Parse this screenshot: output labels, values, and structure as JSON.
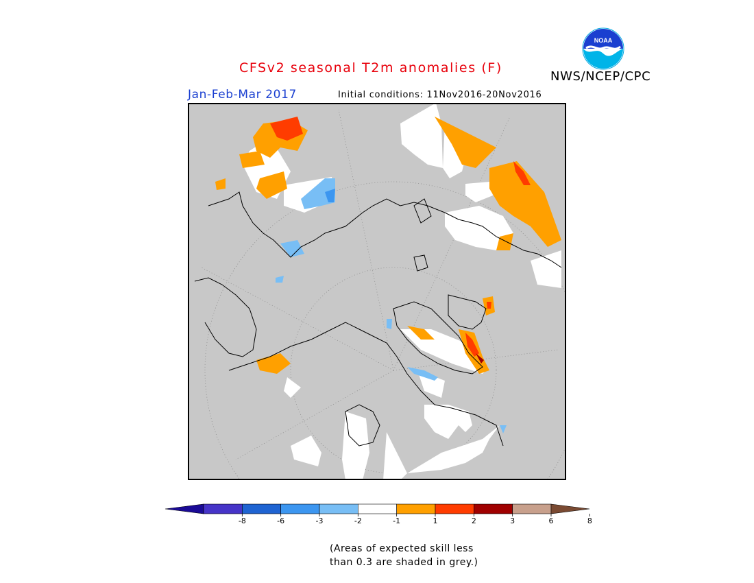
{
  "header": {
    "title": "CFSv2 seasonal T2m anomalies (F)",
    "period": "Jan-Feb-Mar 2017",
    "initial_conditions": "Initial conditions: 11Nov2016-20Nov2016",
    "agency": "NWS/NCEP/CPC",
    "logo_text": "NOAA"
  },
  "map": {
    "projection": "north-polar-stereographic",
    "masked_color": "#c8c8c8",
    "land_outline_color": "#000000"
  },
  "legend": {
    "bins": [
      {
        "color": "#1a0a96"
      },
      {
        "color": "#4634c8"
      },
      {
        "color": "#1f64d2"
      },
      {
        "color": "#3c96f0"
      },
      {
        "color": "#78bef5"
      },
      {
        "color": "#ffffff"
      },
      {
        "color": "#ffa000"
      },
      {
        "color": "#ff3c00"
      },
      {
        "color": "#a00000"
      },
      {
        "color": "#c8a08c"
      },
      {
        "color": "#7a4a32"
      }
    ],
    "tick_labels": [
      "-8",
      "-6",
      "-3",
      "-2",
      "-1",
      "1",
      "2",
      "3",
      "6",
      "8"
    ]
  },
  "footnote": {
    "line1": "(Areas of expected skill less",
    "line2": "than 0.3 are shaded in grey.)"
  }
}
